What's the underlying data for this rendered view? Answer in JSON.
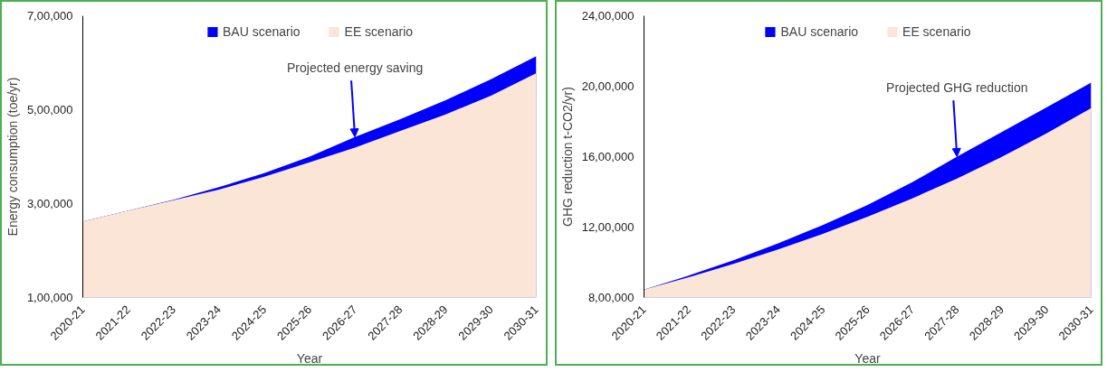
{
  "chart_data": [
    {
      "type": "area",
      "xlabel": "Year",
      "ylabel": "Energy consumption (toe/yr)",
      "categories": [
        "2020-21",
        "2021-22",
        "2022-23",
        "2023-24",
        "2024-25",
        "2025-26",
        "2026-27",
        "2027-28",
        "2028-29",
        "2029-30",
        "2030-31"
      ],
      "series": [
        {
          "name": "BAU scenario",
          "color": "#0000ff",
          "values": [
            262000,
            285000,
            308000,
            335000,
            365000,
            400000,
            442000,
            480000,
            520000,
            565000,
            614000
          ]
        },
        {
          "name": "EE scenario",
          "color": "#fbe5d6",
          "values": [
            262000,
            285000,
            307000,
            330000,
            357000,
            388000,
            419000,
            455000,
            490000,
            530000,
            578000
          ]
        }
      ],
      "ylim": [
        100000,
        700000
      ],
      "yticks": [
        {
          "value": 100000,
          "label": "1,00,000"
        },
        {
          "value": 300000,
          "label": "3,00,000"
        },
        {
          "value": 500000,
          "label": "5,00,000"
        },
        {
          "value": 700000,
          "label": "7,00,000"
        }
      ],
      "grid": false,
      "legend": "top",
      "annotations": [
        {
          "text": "Projected energy saving",
          "x": "2026-27",
          "y": 442000
        }
      ]
    },
    {
      "type": "area",
      "xlabel": "Year",
      "ylabel": "GHG reduction t-CO2/yr)",
      "categories": [
        "2020-21",
        "2021-22",
        "2022-23",
        "2023-24",
        "2024-25",
        "2025-26",
        "2026-27",
        "2027-28",
        "2028-29",
        "2029-30",
        "2030-31"
      ],
      "series": [
        {
          "name": "BAU scenario",
          "color": "#0000ff",
          "values": [
            845000,
            925000,
            1012000,
            1108000,
            1212000,
            1326000,
            1455000,
            1600000,
            1740000,
            1880000,
            2021000
          ]
        },
        {
          "name": "EE scenario",
          "color": "#fbe5d6",
          "values": [
            845000,
            915000,
            991000,
            1073000,
            1162000,
            1259000,
            1363000,
            1476000,
            1599000,
            1732000,
            1876000
          ]
        }
      ],
      "ylim": [
        800000,
        2400000
      ],
      "yticks": [
        {
          "value": 800000,
          "label": "8,00,000"
        },
        {
          "value": 1200000,
          "label": "12,00,000"
        },
        {
          "value": 1600000,
          "label": "16,00,000"
        },
        {
          "value": 2000000,
          "label": "20,00,000"
        },
        {
          "value": 2400000,
          "label": "24,00,000"
        }
      ],
      "grid": false,
      "legend": "top",
      "annotations": [
        {
          "text": "Projected GHG reduction",
          "x": "2027-28",
          "y": 1600000
        }
      ]
    }
  ]
}
